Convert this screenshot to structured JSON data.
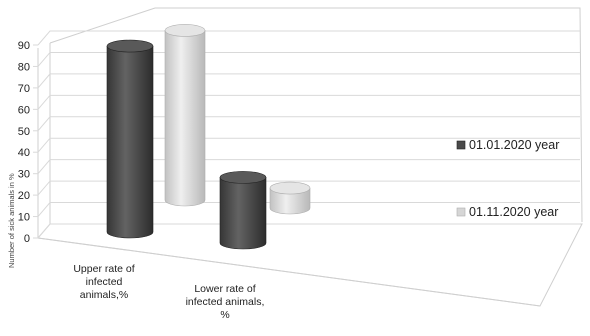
{
  "chart_data": {
    "type": "bar",
    "categories": [
      [
        "Upper rate of",
        "infected",
        "animals,%"
      ],
      [
        "Lower rate of",
        "infected animals,",
        "%"
      ]
    ],
    "series": [
      {
        "name": "01.01.2020 year",
        "values": [
          85,
          30
        ],
        "color": "#4a4a4a"
      },
      {
        "name": "01.11.2020 year",
        "values": [
          85,
          10
        ],
        "color": "#d6d6d6"
      }
    ],
    "yticks": [
      0,
      10,
      20,
      30,
      40,
      50,
      60,
      70,
      80,
      90
    ],
    "ylim": [
      0,
      90
    ],
    "ylabel": "Number of sick animals in %",
    "legend_position": "right",
    "grid": true,
    "style": "3d-cylinder"
  }
}
